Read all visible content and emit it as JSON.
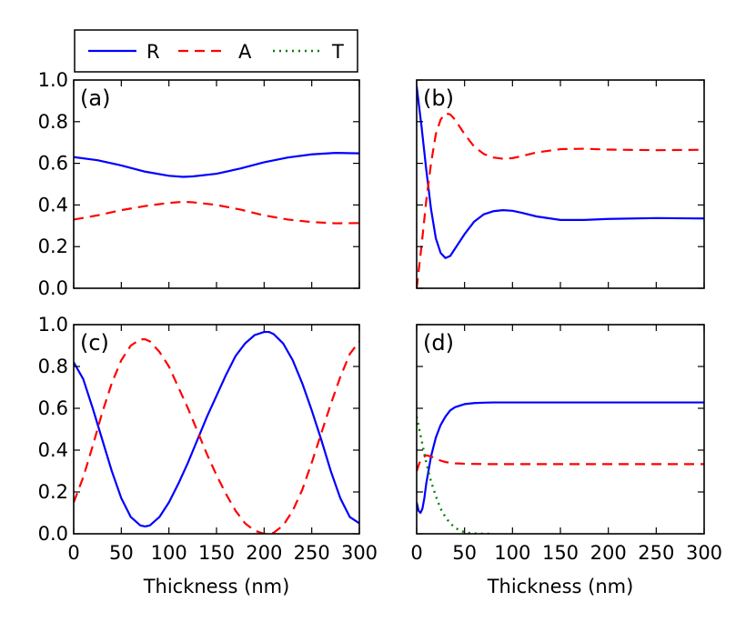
{
  "legend": {
    "entries": [
      {
        "name": "R",
        "color": "#0000ff",
        "style": "solid"
      },
      {
        "name": "A",
        "color": "#ff0000",
        "style": "dashed"
      },
      {
        "name": "T",
        "color": "#008000",
        "style": "dotted"
      }
    ]
  },
  "chart_data": [
    {
      "type": "line",
      "panel_label": "(a)",
      "xlabel": "",
      "ylabel": "",
      "xlim": [
        0,
        300
      ],
      "ylim": [
        0,
        1
      ],
      "xticks": [
        0,
        50,
        100,
        150,
        200,
        250,
        300
      ],
      "yticks": [
        0.0,
        0.2,
        0.4,
        0.6,
        0.8,
        1.0
      ],
      "ytick_labels": [
        "0.0",
        "0.2",
        "0.4",
        "0.6",
        "0.8",
        "1.0"
      ],
      "show_xtick_labels": false,
      "show_ytick_labels": true,
      "series": [
        {
          "name": "R",
          "x": [
            0,
            25,
            50,
            75,
            100,
            115,
            125,
            150,
            175,
            200,
            225,
            250,
            275,
            300
          ],
          "y": [
            0.63,
            0.615,
            0.59,
            0.56,
            0.54,
            0.535,
            0.537,
            0.55,
            0.575,
            0.605,
            0.628,
            0.643,
            0.65,
            0.648
          ]
        },
        {
          "name": "A",
          "x": [
            0,
            25,
            50,
            75,
            100,
            115,
            125,
            150,
            175,
            200,
            225,
            250,
            275,
            300
          ],
          "y": [
            0.33,
            0.35,
            0.375,
            0.395,
            0.41,
            0.415,
            0.413,
            0.4,
            0.378,
            0.35,
            0.33,
            0.318,
            0.312,
            0.313
          ]
        }
      ]
    },
    {
      "type": "line",
      "panel_label": "(b)",
      "xlabel": "",
      "ylabel": "",
      "xlim": [
        0,
        300
      ],
      "ylim": [
        0,
        1
      ],
      "xticks": [
        0,
        50,
        100,
        150,
        200,
        250,
        300
      ],
      "yticks": [
        0.0,
        0.2,
        0.4,
        0.6,
        0.8,
        1.0
      ],
      "ytick_labels": [
        "0.0",
        "0.2",
        "0.4",
        "0.6",
        "0.8",
        "1.0"
      ],
      "show_xtick_labels": false,
      "show_ytick_labels": false,
      "series": [
        {
          "name": "R",
          "x": [
            0,
            5,
            10,
            15,
            20,
            25,
            30,
            35,
            40,
            50,
            60,
            70,
            80,
            90,
            100,
            110,
            125,
            150,
            175,
            200,
            250,
            300
          ],
          "y": [
            0.97,
            0.78,
            0.57,
            0.38,
            0.24,
            0.17,
            0.145,
            0.155,
            0.19,
            0.26,
            0.32,
            0.355,
            0.37,
            0.375,
            0.372,
            0.362,
            0.345,
            0.328,
            0.328,
            0.333,
            0.337,
            0.335
          ]
        },
        {
          "name": "A",
          "x": [
            0,
            5,
            10,
            15,
            20,
            25,
            30,
            35,
            40,
            50,
            60,
            70,
            80,
            90,
            100,
            110,
            125,
            150,
            175,
            200,
            250,
            300
          ],
          "y": [
            0.0,
            0.2,
            0.42,
            0.6,
            0.74,
            0.81,
            0.84,
            0.835,
            0.81,
            0.74,
            0.68,
            0.645,
            0.628,
            0.622,
            0.625,
            0.635,
            0.652,
            0.668,
            0.67,
            0.666,
            0.663,
            0.665
          ]
        }
      ]
    },
    {
      "type": "line",
      "panel_label": "(c)",
      "xlabel": "Thickness (nm)",
      "ylabel": "",
      "xlim": [
        0,
        300
      ],
      "ylim": [
        0,
        1
      ],
      "xticks": [
        0,
        50,
        100,
        150,
        200,
        250,
        300
      ],
      "xtick_labels": [
        "0",
        "50",
        "100",
        "150",
        "200",
        "250",
        "300"
      ],
      "yticks": [
        0.0,
        0.2,
        0.4,
        0.6,
        0.8,
        1.0
      ],
      "ytick_labels": [
        "0.0",
        "0.2",
        "0.4",
        "0.6",
        "0.8",
        "1.0"
      ],
      "show_xtick_labels": true,
      "show_ytick_labels": true,
      "series": [
        {
          "name": "R",
          "x": [
            0,
            10,
            20,
            30,
            40,
            50,
            60,
            70,
            75,
            80,
            90,
            100,
            110,
            120,
            130,
            140,
            150,
            160,
            170,
            180,
            190,
            200,
            205,
            210,
            220,
            230,
            240,
            250,
            260,
            270,
            280,
            290,
            300
          ],
          "y": [
            0.82,
            0.74,
            0.6,
            0.45,
            0.3,
            0.17,
            0.08,
            0.04,
            0.035,
            0.04,
            0.08,
            0.15,
            0.24,
            0.34,
            0.45,
            0.56,
            0.66,
            0.76,
            0.85,
            0.91,
            0.95,
            0.965,
            0.965,
            0.955,
            0.91,
            0.83,
            0.72,
            0.59,
            0.45,
            0.3,
            0.17,
            0.08,
            0.05
          ]
        },
        {
          "name": "A",
          "x": [
            0,
            10,
            20,
            30,
            40,
            50,
            60,
            70,
            75,
            80,
            90,
            100,
            110,
            120,
            130,
            140,
            150,
            160,
            170,
            180,
            190,
            200,
            205,
            210,
            220,
            230,
            240,
            250,
            260,
            270,
            280,
            290,
            300
          ],
          "y": [
            0.15,
            0.27,
            0.42,
            0.58,
            0.72,
            0.83,
            0.9,
            0.93,
            0.93,
            0.92,
            0.87,
            0.8,
            0.7,
            0.6,
            0.49,
            0.38,
            0.28,
            0.19,
            0.11,
            0.05,
            0.015,
            0.0,
            0.0,
            0.005,
            0.04,
            0.11,
            0.21,
            0.34,
            0.48,
            0.62,
            0.75,
            0.86,
            0.92
          ]
        }
      ]
    },
    {
      "type": "line",
      "panel_label": "(d)",
      "xlabel": "Thickness (nm)",
      "ylabel": "",
      "xlim": [
        0,
        300
      ],
      "ylim": [
        0,
        1
      ],
      "xticks": [
        0,
        50,
        100,
        150,
        200,
        250,
        300
      ],
      "xtick_labels": [
        "0",
        "50",
        "100",
        "150",
        "200",
        "250",
        "300"
      ],
      "yticks": [
        0.0,
        0.2,
        0.4,
        0.6,
        0.8,
        1.0
      ],
      "ytick_labels": [
        "0.0",
        "0.2",
        "0.4",
        "0.6",
        "0.8",
        "1.0"
      ],
      "show_xtick_labels": true,
      "show_ytick_labels": false,
      "series": [
        {
          "name": "R",
          "x": [
            0,
            2,
            4,
            6,
            8,
            10,
            15,
            20,
            25,
            30,
            35,
            40,
            50,
            60,
            70,
            80,
            100,
            150,
            200,
            250,
            300
          ],
          "y": [
            0.15,
            0.11,
            0.1,
            0.12,
            0.17,
            0.24,
            0.37,
            0.46,
            0.52,
            0.56,
            0.59,
            0.605,
            0.62,
            0.625,
            0.627,
            0.628,
            0.628,
            0.628,
            0.628,
            0.628,
            0.628
          ]
        },
        {
          "name": "A",
          "x": [
            0,
            3,
            6,
            10,
            15,
            20,
            25,
            30,
            40,
            50,
            60,
            80,
            100,
            150,
            200,
            250,
            300
          ],
          "y": [
            0.3,
            0.34,
            0.365,
            0.375,
            0.37,
            0.36,
            0.35,
            0.343,
            0.337,
            0.335,
            0.334,
            0.333,
            0.333,
            0.333,
            0.333,
            0.333,
            0.333
          ]
        },
        {
          "name": "T",
          "x": [
            0,
            5,
            10,
            15,
            20,
            25,
            30,
            35,
            40,
            45,
            50,
            55,
            60,
            70,
            80
          ],
          "y": [
            0.56,
            0.45,
            0.34,
            0.25,
            0.18,
            0.12,
            0.08,
            0.05,
            0.03,
            0.015,
            0.008,
            0.004,
            0.002,
            0.0,
            0.0
          ]
        }
      ]
    }
  ]
}
